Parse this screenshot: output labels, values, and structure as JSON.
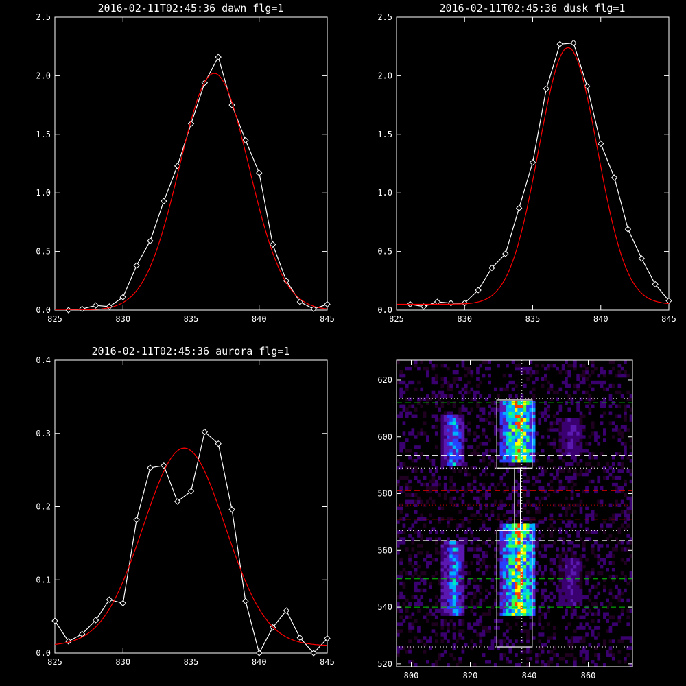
{
  "chart_data": [
    {
      "id": "dawn",
      "type": "line",
      "title": "2016-02-11T02:45:36 dawn flg=1",
      "xlabel": "",
      "ylabel": "",
      "xlim": [
        825,
        845
      ],
      "ylim": [
        0,
        2.5
      ],
      "xticks": [
        "825",
        "830",
        "835",
        "840",
        "845"
      ],
      "yticks": [
        "0.0",
        "0.5",
        "1.0",
        "1.5",
        "2.0",
        "2.5"
      ],
      "series": [
        {
          "style": "white-line-diamonds",
          "color": "#ffffff",
          "x": [
            826,
            827,
            828,
            829,
            830,
            831,
            832,
            833,
            834,
            835,
            836,
            837,
            838,
            839,
            840,
            841,
            842,
            843,
            844,
            845
          ],
          "y": [
            0.0,
            0.01,
            0.04,
            0.03,
            0.11,
            0.38,
            0.59,
            0.93,
            1.23,
            1.59,
            1.94,
            2.16,
            1.75,
            1.45,
            1.17,
            0.56,
            0.25,
            0.07,
            0.01,
            0.05
          ]
        },
        {
          "style": "red-gaussian-fit",
          "color": "#ff0000",
          "amplitude": 2.02,
          "center": 836.7,
          "sigma": 2.55,
          "offset": 0.0
        }
      ]
    },
    {
      "id": "dusk",
      "type": "line",
      "title": "2016-02-11T02:45:36 dusk flg=1",
      "xlabel": "",
      "ylabel": "",
      "xlim": [
        825,
        845
      ],
      "ylim": [
        0,
        2.5
      ],
      "xticks": [
        "825",
        "830",
        "835",
        "840",
        "845"
      ],
      "yticks": [
        "0.0",
        "0.5",
        "1.0",
        "1.5",
        "2.0",
        "2.5"
      ],
      "series": [
        {
          "style": "white-line-diamonds",
          "color": "#ffffff",
          "x": [
            826,
            827,
            828,
            829,
            830,
            831,
            832,
            833,
            834,
            835,
            836,
            837,
            838,
            839,
            840,
            841,
            842,
            843,
            844,
            845
          ],
          "y": [
            0.05,
            0.03,
            0.07,
            0.06,
            0.06,
            0.17,
            0.36,
            0.48,
            0.87,
            1.26,
            1.89,
            2.27,
            2.28,
            1.91,
            1.42,
            1.13,
            0.69,
            0.44,
            0.22,
            0.08
          ]
        },
        {
          "style": "red-gaussian-fit",
          "color": "#ff0000",
          "amplitude": 2.19,
          "center": 837.6,
          "sigma": 2.15,
          "offset": 0.05
        }
      ]
    },
    {
      "id": "aurora",
      "type": "line",
      "title": "2016-02-11T02:45:36 aurora flg=1",
      "xlabel": "",
      "ylabel": "",
      "xlim": [
        825,
        845
      ],
      "ylim": [
        0,
        0.4
      ],
      "xticks": [
        "825",
        "830",
        "835",
        "840",
        "845"
      ],
      "yticks": [
        "0.0",
        "0.1",
        "0.2",
        "0.3",
        "0.4"
      ],
      "series": [
        {
          "style": "white-line-diamonds",
          "color": "#ffffff",
          "x": [
            825,
            826,
            827,
            828,
            829,
            830,
            831,
            832,
            833,
            834,
            835,
            836,
            837,
            838,
            839,
            840,
            841,
            842,
            843,
            844,
            845
          ],
          "y": [
            0.044,
            0.016,
            0.026,
            0.045,
            0.073,
            0.068,
            0.182,
            0.253,
            0.256,
            0.207,
            0.221,
            0.302,
            0.286,
            0.196,
            0.071,
            0.0,
            0.035,
            0.058,
            0.021,
            0.0,
            0.02
          ]
        },
        {
          "style": "red-gaussian-fit",
          "color": "#ff0000",
          "amplitude": 0.27,
          "center": 834.5,
          "sigma": 3.0,
          "offset": 0.01
        }
      ]
    },
    {
      "id": "spectrogram",
      "type": "heatmap",
      "title": "",
      "xlim": [
        795,
        875
      ],
      "ylim": [
        519,
        627
      ],
      "xticks": [
        "800",
        "820",
        "840",
        "860"
      ],
      "yticks": [
        "520",
        "540",
        "560",
        "580",
        "600",
        "620"
      ],
      "colormap": [
        "#200020",
        "#3a0070",
        "#5a18b0",
        "#2a40ff",
        "#00b0ff",
        "#00e8c0",
        "#40ff40",
        "#ffff00",
        "#ff4000"
      ],
      "emission_columns": [
        {
          "x": [
            810,
            818
          ],
          "y_ranges": [
            [
              589,
              607
            ],
            [
              536,
              563
            ]
          ],
          "level": 0.55
        },
        {
          "x": [
            830,
            842
          ],
          "y_ranges": [
            [
              590,
              612
            ],
            [
              536,
              569
            ]
          ],
          "level": 1.0
        },
        {
          "x": [
            850,
            858
          ],
          "y_ranges": [
            [
              593,
              606
            ],
            [
              540,
              557
            ]
          ],
          "level": 0.3
        }
      ],
      "boxes": [
        {
          "x": [
            829,
            841
          ],
          "y": [
            589,
            613
          ]
        },
        {
          "x": [
            829,
            841
          ],
          "y": [
            526,
            567
          ]
        },
        {
          "x": [
            835,
            837
          ],
          "y": [
            567,
            589
          ]
        }
      ],
      "hlines": [
        {
          "y": 612,
          "color": "#00cc00",
          "dash": "long"
        },
        {
          "y": 602,
          "color": "#00cc00",
          "dash": "long"
        },
        {
          "y": 593.5,
          "color": "#ffffff",
          "dash": "long"
        },
        {
          "y": 589,
          "color": "#ffffff",
          "dash": "dot"
        },
        {
          "y": 613.5,
          "color": "#ffffff",
          "dash": "dot"
        },
        {
          "y": 581,
          "color": "#cc0000",
          "dash": "long"
        },
        {
          "y": 576,
          "color": "#cc0000",
          "dash": "dot"
        },
        {
          "y": 571,
          "color": "#cc0000",
          "dash": "long"
        },
        {
          "y": 567,
          "color": "#ffffff",
          "dash": "dot"
        },
        {
          "y": 563.5,
          "color": "#ffffff",
          "dash": "long"
        },
        {
          "y": 550,
          "color": "#00cc00",
          "dash": "long"
        },
        {
          "y": 540,
          "color": "#00cc00",
          "dash": "long"
        },
        {
          "y": 526,
          "color": "#ffffff",
          "dash": "dot"
        }
      ],
      "vlines": [
        {
          "x": 836.5,
          "color": "#ff66ff",
          "dash": "dot"
        },
        {
          "x": 837.5,
          "color": "#ffffff",
          "dash": "dot"
        }
      ]
    }
  ]
}
